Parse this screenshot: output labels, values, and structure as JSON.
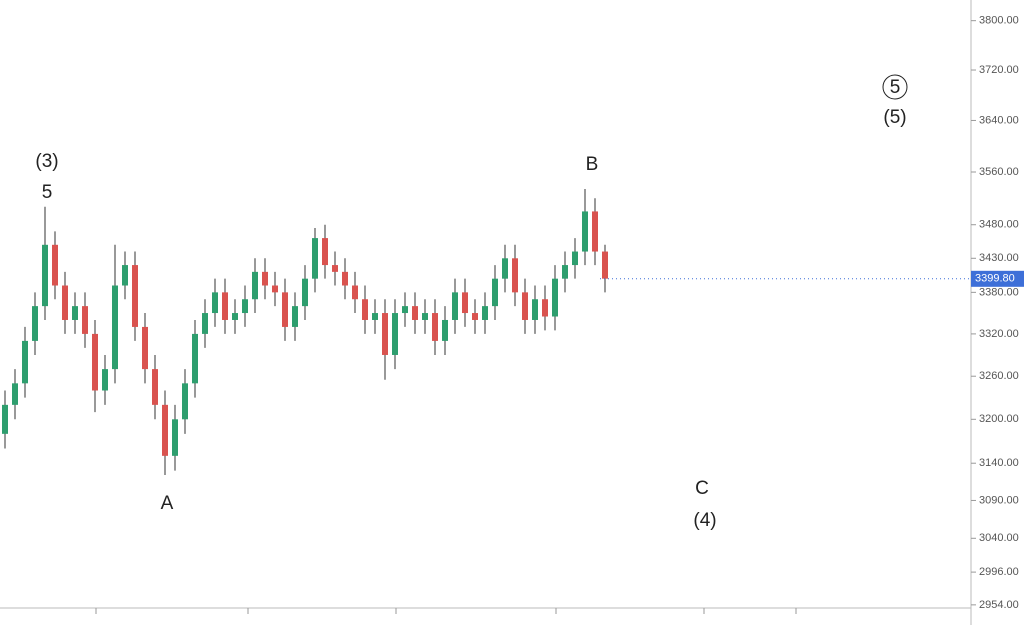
{
  "chart_data": {
    "type": "candlestick",
    "log_scale": true,
    "ylim": [
      2950,
      3834
    ],
    "yticks": [
      {
        "value": 3800,
        "label": "3800.00"
      },
      {
        "value": 3720,
        "label": "3720.00"
      },
      {
        "value": 3640,
        "label": "3640.00"
      },
      {
        "value": 3560,
        "label": "3560.00"
      },
      {
        "value": 3480,
        "label": "3480.00"
      },
      {
        "value": 3430,
        "label": "3430.00"
      },
      {
        "value": 3380,
        "label": "3380.00"
      },
      {
        "value": 3320,
        "label": "3320.00"
      },
      {
        "value": 3260,
        "label": "3260.00"
      },
      {
        "value": 3200,
        "label": "3200.00"
      },
      {
        "value": 3140,
        "label": "3140.00"
      },
      {
        "value": 3090,
        "label": "3090.00"
      },
      {
        "value": 3040,
        "label": "3040.00"
      },
      {
        "value": 2996,
        "label": "2996.00"
      },
      {
        "value": 2954,
        "label": "2954.00"
      }
    ],
    "last_price": {
      "value": 3399.8,
      "label": "3399.80"
    },
    "up_color": "#2e9e6e",
    "down_color": "#d9534f",
    "last_price_color": "#3d6fd8",
    "open": [
      3180,
      3220,
      3250,
      3310,
      3360,
      3450,
      3390,
      3340,
      3360,
      3320,
      3240,
      3270,
      3390,
      3420,
      3330,
      3270,
      3220,
      3150,
      3200,
      3250,
      3320,
      3350,
      3380,
      3340,
      3350,
      3370,
      3410,
      3390,
      3380,
      3330,
      3360,
      3400,
      3460,
      3420,
      3410,
      3390,
      3370,
      3340,
      3350,
      3290,
      3350,
      3360,
      3340,
      3350,
      3310,
      3340,
      3380,
      3350,
      3340,
      3360,
      3400,
      3430,
      3380,
      3340,
      3370,
      3345,
      3400,
      3420,
      3440,
      3500,
      3440
    ],
    "high": [
      3240,
      3270,
      3330,
      3380,
      3507,
      3470,
      3410,
      3380,
      3380,
      3340,
      3290,
      3450,
      3440,
      3440,
      3350,
      3290,
      3240,
      3220,
      3270,
      3340,
      3370,
      3400,
      3400,
      3370,
      3390,
      3430,
      3430,
      3410,
      3400,
      3380,
      3420,
      3475,
      3480,
      3440,
      3430,
      3410,
      3390,
      3370,
      3370,
      3370,
      3380,
      3380,
      3370,
      3370,
      3360,
      3400,
      3400,
      3370,
      3380,
      3420,
      3450,
      3450,
      3400,
      3390,
      3390,
      3420,
      3440,
      3460,
      3534,
      3520,
      3450
    ],
    "low": [
      3160,
      3200,
      3230,
      3290,
      3340,
      3370,
      3320,
      3320,
      3300,
      3210,
      3220,
      3250,
      3370,
      3310,
      3250,
      3200,
      3124,
      3130,
      3180,
      3230,
      3300,
      3330,
      3320,
      3320,
      3330,
      3350,
      3370,
      3360,
      3310,
      3310,
      3340,
      3380,
      3400,
      3390,
      3370,
      3350,
      3320,
      3320,
      3255,
      3270,
      3330,
      3320,
      3320,
      3290,
      3290,
      3320,
      3330,
      3320,
      3320,
      3340,
      3380,
      3360,
      3320,
      3320,
      3325,
      3325,
      3380,
      3400,
      3420,
      3420,
      3380
    ],
    "close": [
      3220,
      3250,
      3310,
      3360,
      3450,
      3390,
      3340,
      3360,
      3320,
      3240,
      3270,
      3390,
      3420,
      3330,
      3270,
      3220,
      3150,
      3200,
      3250,
      3320,
      3350,
      3380,
      3340,
      3350,
      3370,
      3410,
      3390,
      3380,
      3330,
      3360,
      3400,
      3460,
      3420,
      3410,
      3390,
      3370,
      3340,
      3350,
      3290,
      3350,
      3360,
      3340,
      3350,
      3310,
      3340,
      3380,
      3350,
      3340,
      3360,
      3400,
      3430,
      3380,
      3340,
      3370,
      3345,
      3400,
      3420,
      3440,
      3500,
      3440,
      3400
    ],
    "annotations": [
      {
        "text": "(3)"
      },
      {
        "text": "5"
      },
      {
        "text": "A"
      },
      {
        "text": "B"
      },
      {
        "text": "C"
      },
      {
        "text": "(4)"
      },
      {
        "text": "5"
      },
      {
        "text": "(5)"
      }
    ]
  }
}
